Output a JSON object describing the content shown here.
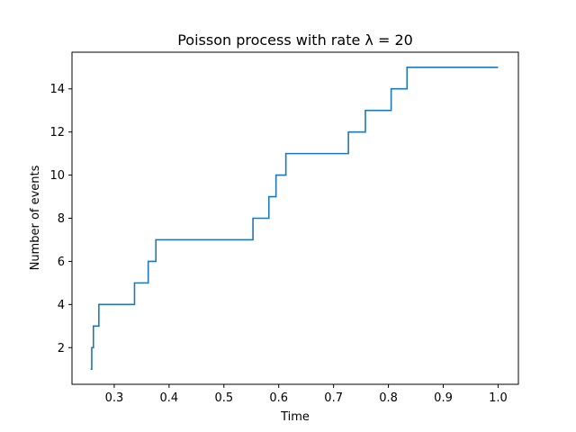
{
  "chart_data": {
    "type": "line",
    "drawstyle": "steps-post",
    "title": "Poisson process with rate λ = 20",
    "xlabel": "Time",
    "ylabel": "Number of events",
    "xlim": [
      0.223,
      1.037
    ],
    "ylim": [
      0.3,
      15.7
    ],
    "xticks": [
      0.3,
      0.4,
      0.5,
      0.6,
      0.7,
      0.8,
      0.9,
      1.0
    ],
    "xtick_labels": [
      "0.3",
      "0.4",
      "0.5",
      "0.6",
      "0.7",
      "0.8",
      "0.9",
      "1.0"
    ],
    "yticks": [
      2,
      4,
      6,
      8,
      10,
      12,
      14
    ],
    "ytick_labels": [
      "2",
      "4",
      "6",
      "8",
      "10",
      "12",
      "14"
    ],
    "grid": false,
    "series": [
      {
        "color": "#1f77b4",
        "x": [
          0.257,
          0.259,
          0.262,
          0.272,
          0.337,
          0.362,
          0.376,
          0.553,
          0.582,
          0.595,
          0.613,
          0.727,
          0.758,
          0.805,
          0.834,
          1.0
        ],
        "y": [
          1,
          2,
          3,
          4,
          5,
          6,
          7,
          8,
          9,
          10,
          11,
          12,
          13,
          14,
          15,
          15
        ]
      }
    ]
  }
}
